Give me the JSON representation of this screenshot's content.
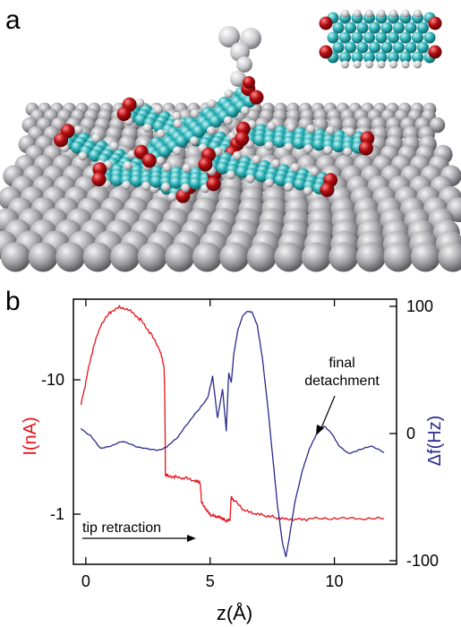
{
  "panels": {
    "a_label": "a",
    "b_label": "b"
  },
  "colors": {
    "current": "#e8121b",
    "df": "#2a2a8c",
    "carbon": "#2fb3b8",
    "oxygen": "#b50d12",
    "hydrogen": "#cfcfcf",
    "substrate": "#a9a9ad"
  },
  "chart_data": {
    "type": "line",
    "xlabel": "z(Å)",
    "xlim": [
      -0.5,
      12.5
    ],
    "xticks": [
      0,
      5,
      10
    ],
    "left_axis": {
      "label": "I(nA)",
      "scale": "log",
      "ticks": [
        -10,
        -1
      ],
      "color": "#e8121b"
    },
    "right_axis": {
      "label": "Δf(Hz)",
      "ylim": [
        -100,
        100
      ],
      "ticks": [
        100,
        0,
        -100
      ],
      "color": "#2a2a8c"
    },
    "annotations": [
      {
        "text": "final",
        "line2": "detachment",
        "points_to": [
          9.8,
          0
        ]
      },
      {
        "text": "tip retraction"
      }
    ],
    "series": [
      {
        "axis": "left",
        "color": "#e8121b",
        "x": [
          -0.2,
          0,
          0.3,
          0.6,
          1.0,
          1.4,
          1.8,
          2.2,
          2.6,
          3.0,
          3.15,
          3.2,
          3.3,
          3.6,
          4.0,
          4.4,
          4.6,
          4.65,
          4.7,
          4.9,
          5.1,
          5.3,
          5.5,
          5.6,
          5.8,
          5.85,
          6.0,
          6.4,
          6.8,
          7.2,
          7.6,
          8.0,
          8.5,
          9.0,
          10.0,
          11.0,
          12.0
        ],
        "y": [
          -6.5,
          -9.5,
          -17,
          -25,
          -32,
          -35,
          -33,
          -28,
          -22,
          -16,
          -12,
          -2.0,
          -1.95,
          -1.9,
          -1.85,
          -1.75,
          -1.7,
          -1.25,
          -1.2,
          -1.05,
          -0.97,
          -0.95,
          -0.92,
          -0.9,
          -0.9,
          -1.35,
          -1.25,
          -1.05,
          -1.0,
          -0.97,
          -0.95,
          -0.93,
          -0.92,
          -0.92,
          -0.92,
          -0.92,
          -0.92
        ]
      },
      {
        "axis": "right",
        "color": "#2a2a8c",
        "x": [
          -0.2,
          0.2,
          0.6,
          1.0,
          1.5,
          2.0,
          2.5,
          3.0,
          3.3,
          3.7,
          4.1,
          4.5,
          4.9,
          5.1,
          5.3,
          5.5,
          5.65,
          5.75,
          5.85,
          5.95,
          6.1,
          6.3,
          6.5,
          6.7,
          6.9,
          7.1,
          7.3,
          7.5,
          7.7,
          7.9,
          8.05,
          8.2,
          8.4,
          8.7,
          9.0,
          9.3,
          9.6,
          9.9,
          10.2,
          10.6,
          11.0,
          11.5,
          12.0
        ],
        "y": [
          4,
          -2,
          -12,
          -10,
          -6,
          -10,
          -12,
          -13,
          -10,
          -3,
          8,
          18,
          28,
          45,
          12,
          35,
          2,
          48,
          40,
          62,
          80,
          92,
          96,
          95,
          85,
          60,
          25,
          -15,
          -55,
          -85,
          -97,
          -80,
          -55,
          -30,
          -12,
          0,
          6,
          0,
          -10,
          -16,
          -13,
          -10,
          -15
        ]
      }
    ]
  }
}
